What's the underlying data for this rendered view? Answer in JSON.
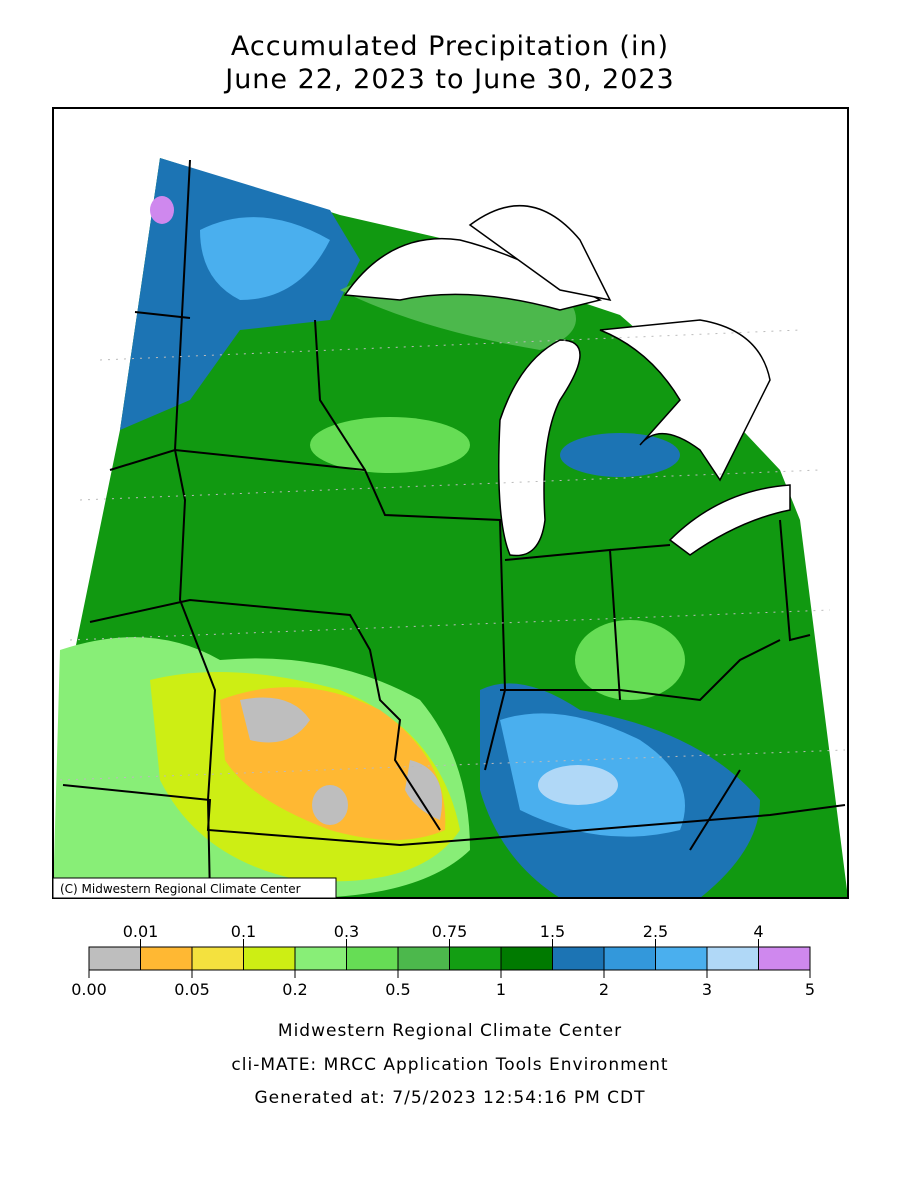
{
  "header": {
    "title": "Accumulated Precipitation (in)",
    "subtitle": "June 22, 2023 to June 30, 2023"
  },
  "map": {
    "credit": "(C) Midwestern Regional Climate Center"
  },
  "legend": {
    "labels": [
      "0.00",
      "0.01",
      "0.05",
      "0.1",
      "0.2",
      "0.3",
      "0.5",
      "0.75",
      "1",
      "1.5",
      "2",
      "2.5",
      "3",
      "4",
      "5"
    ],
    "colors": [
      "#bebebe",
      "#ffb833",
      "#f4e13e",
      "#cdee14",
      "#88ee77",
      "#66dd55",
      "#4cb84c",
      "#139e13",
      "#007a00",
      "#1c74b4",
      "#3398db",
      "#4aafee",
      "#b0d8f7",
      "#cf88ee"
    ]
  },
  "footer": {
    "lines": [
      "Midwestern Regional Climate Center",
      "cli-MATE: MRCC Application Tools Environment",
      "Generated at: 7/5/2023 12:54:16 PM CDT"
    ]
  }
}
